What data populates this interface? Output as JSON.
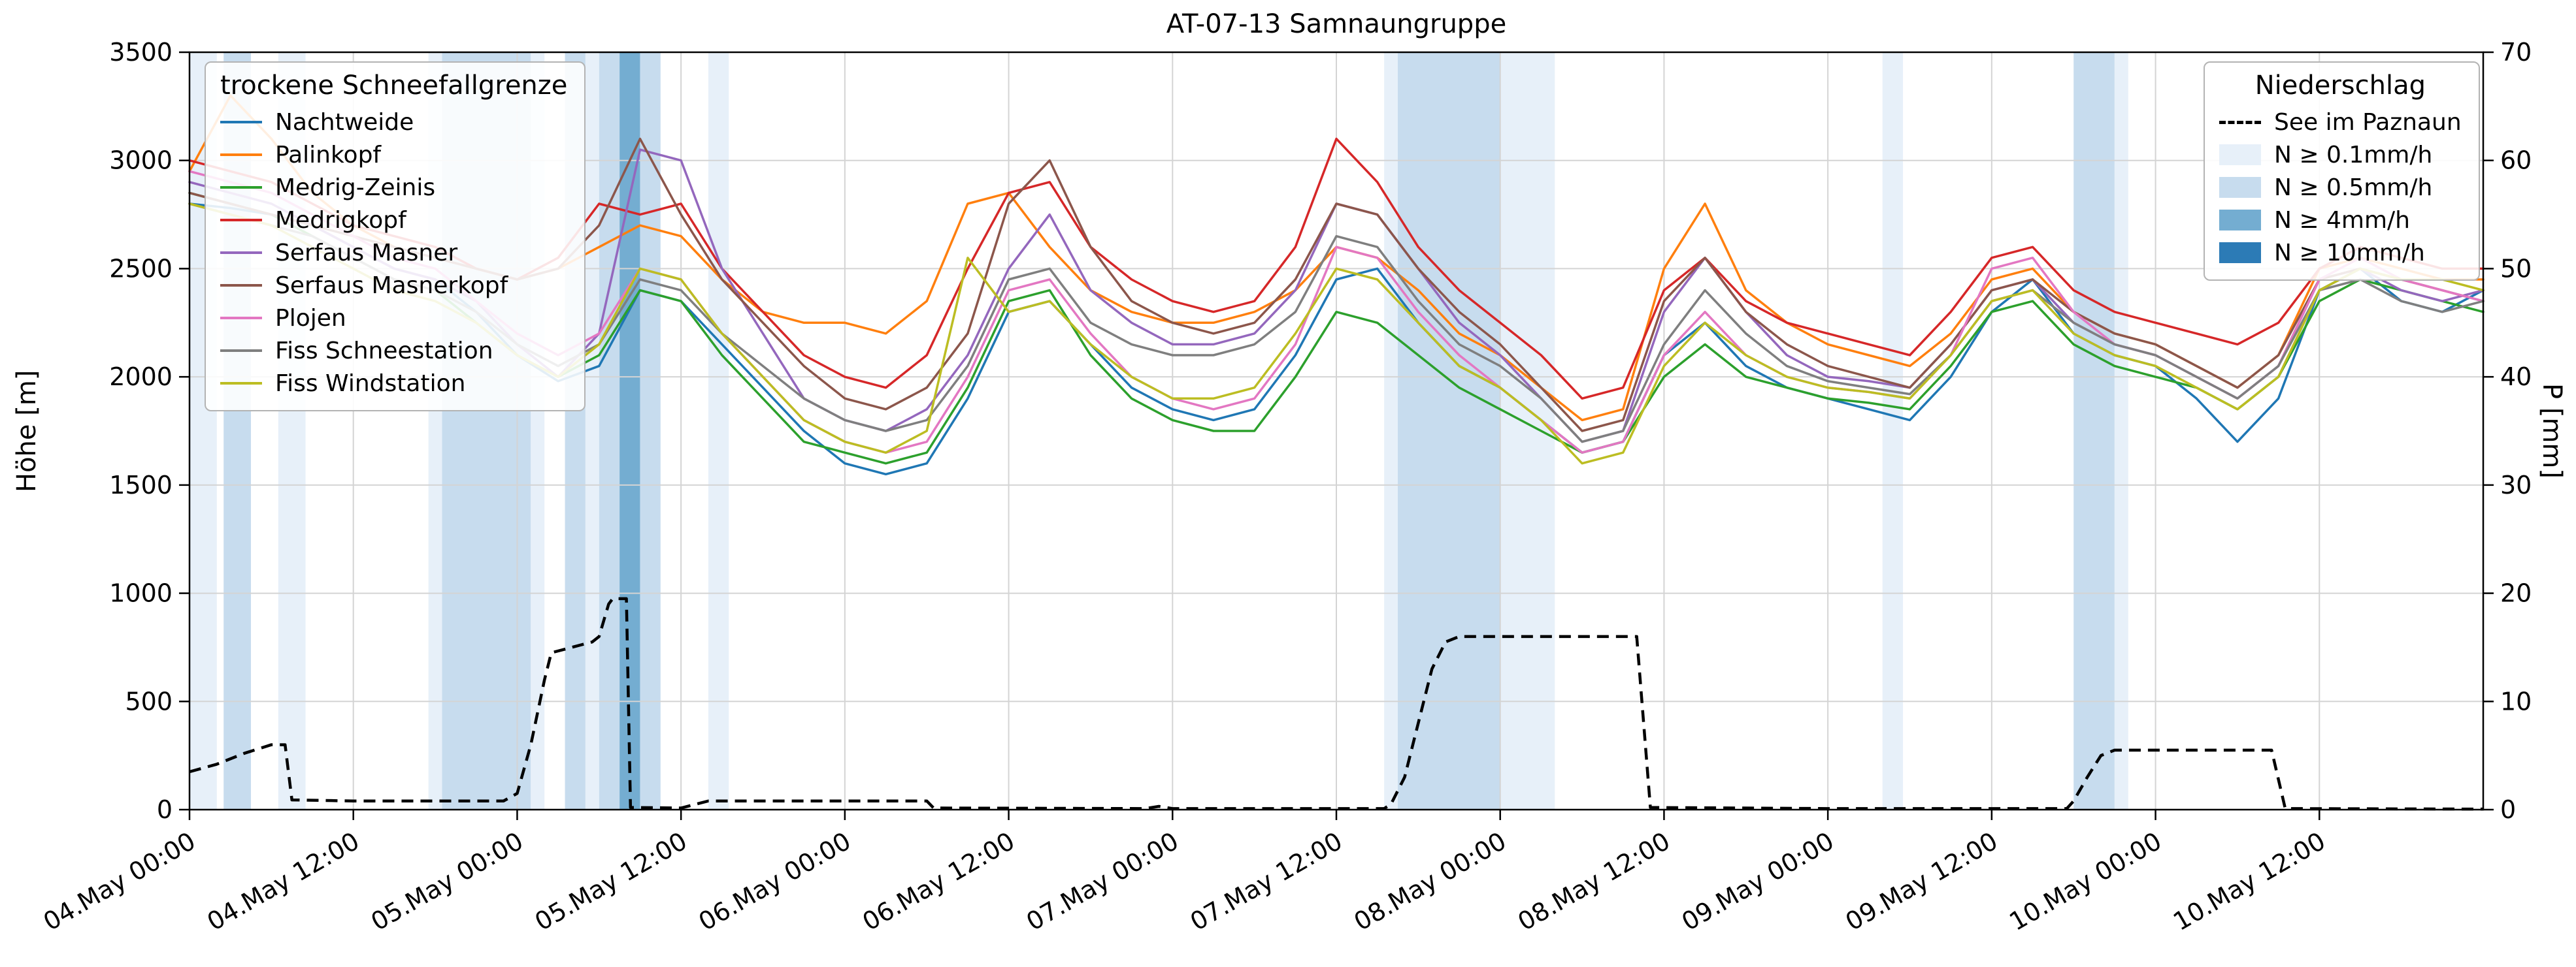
{
  "chart_data": {
    "type": "line",
    "title": "AT-07-13 Samnaungruppe",
    "ylabel_left": "Höhe [m]",
    "ylabel_right": "P [mm]",
    "ylim_left": [
      0,
      3500
    ],
    "ylim_right": [
      0,
      70
    ],
    "grid": true,
    "x_range_hours": [
      0,
      168
    ],
    "x_start_label": "04.May 00:00",
    "x_tick_hours": [
      0,
      12,
      24,
      36,
      48,
      60,
      72,
      84,
      96,
      108,
      120,
      132,
      144,
      156
    ],
    "x_tick_labels": [
      "04.May 00:00",
      "04.May 12:00",
      "05.May 00:00",
      "05.May 12:00",
      "06.May 00:00",
      "06.May 12:00",
      "07.May 00:00",
      "07.May 12:00",
      "08.May 00:00",
      "08.May 12:00",
      "09.May 00:00",
      "09.May 12:00",
      "10.May 00:00",
      "10.May 12:00"
    ],
    "y_left_ticks": [
      0,
      500,
      1000,
      1500,
      2000,
      2500,
      3000,
      3500
    ],
    "y_right_ticks": [
      0,
      10,
      20,
      30,
      40,
      50,
      60,
      70
    ],
    "x_hours": [
      0,
      3,
      6,
      9,
      12,
      15,
      18,
      21,
      24,
      27,
      30,
      33,
      36,
      39,
      42,
      45,
      48,
      51,
      54,
      57,
      60,
      63,
      66,
      69,
      72,
      75,
      78,
      81,
      84,
      87,
      90,
      93,
      96,
      99,
      102,
      105,
      108,
      111,
      114,
      117,
      120,
      123,
      126,
      129,
      132,
      135,
      138,
      141,
      144,
      147,
      150,
      153,
      156,
      159,
      162,
      165,
      168
    ],
    "series": [
      {
        "name": "Nachtweide",
        "color": "#1f77b4",
        "values": [
          2800,
          2780,
          2750,
          2700,
          2600,
          2500,
          2450,
          2300,
          2100,
          1980,
          2050,
          2400,
          2350,
          2150,
          1950,
          1750,
          1600,
          1550,
          1600,
          1900,
          2300,
          2350,
          2150,
          1950,
          1850,
          1800,
          1850,
          2100,
          2450,
          2500,
          2250,
          2050,
          1950,
          1800,
          1650,
          1700,
          2100,
          2250,
          2050,
          1950,
          1900,
          1850,
          1800,
          2000,
          2300,
          2450,
          2200,
          2100,
          2050,
          1900,
          1700,
          1900,
          2400,
          2500,
          2350,
          2300,
          2400
        ]
      },
      {
        "name": "Palinkopf",
        "color": "#ff7f0e",
        "values": [
          2950,
          3300,
          3100,
          2850,
          2700,
          2600,
          2550,
          2500,
          2450,
          2500,
          2600,
          2700,
          2650,
          2450,
          2300,
          2250,
          2250,
          2200,
          2350,
          2800,
          2850,
          2600,
          2400,
          2300,
          2250,
          2250,
          2300,
          2400,
          2600,
          2550,
          2400,
          2200,
          2100,
          1950,
          1800,
          1850,
          2500,
          2800,
          2400,
          2250,
          2150,
          2100,
          2050,
          2200,
          2450,
          2500,
          2300,
          2200,
          2150,
          2050,
          1950,
          2100,
          2500,
          2550,
          2500,
          2450,
          2450
        ]
      },
      {
        "name": "Medrig-Zeinis",
        "color": "#2ca02c",
        "values": [
          2850,
          2800,
          2750,
          2650,
          2550,
          2450,
          2400,
          2250,
          2100,
          2000,
          2100,
          2400,
          2350,
          2100,
          1900,
          1700,
          1650,
          1600,
          1650,
          1950,
          2350,
          2400,
          2100,
          1900,
          1800,
          1750,
          1750,
          2000,
          2300,
          2250,
          2100,
          1950,
          1850,
          1750,
          1650,
          1700,
          2000,
          2150,
          2000,
          1950,
          1900,
          1880,
          1850,
          2050,
          2300,
          2350,
          2150,
          2050,
          2000,
          1950,
          1850,
          2000,
          2350,
          2450,
          2400,
          2350,
          2300
        ]
      },
      {
        "name": "Medrigkopf",
        "color": "#d62728",
        "values": [
          3000,
          2950,
          2900,
          2800,
          2700,
          2650,
          2600,
          2500,
          2450,
          2550,
          2800,
          2750,
          2800,
          2500,
          2300,
          2100,
          2000,
          1950,
          2100,
          2500,
          2850,
          2900,
          2600,
          2450,
          2350,
          2300,
          2350,
          2600,
          3100,
          2900,
          2600,
          2400,
          2250,
          2100,
          1900,
          1950,
          2400,
          2550,
          2350,
          2250,
          2200,
          2150,
          2100,
          2300,
          2550,
          2600,
          2400,
          2300,
          2250,
          2200,
          2150,
          2250,
          2500,
          2600,
          2550,
          2500,
          2500
        ]
      },
      {
        "name": "Serfaus Masner",
        "color": "#9467bd",
        "values": [
          2900,
          2850,
          2800,
          2700,
          2600,
          2500,
          2450,
          2350,
          2150,
          2000,
          2200,
          3050,
          3000,
          2500,
          2200,
          1900,
          1800,
          1750,
          1850,
          2100,
          2500,
          2750,
          2400,
          2250,
          2150,
          2150,
          2200,
          2400,
          2800,
          2750,
          2500,
          2250,
          2100,
          1900,
          1700,
          1750,
          2300,
          2550,
          2300,
          2100,
          2000,
          1980,
          1950,
          2150,
          2400,
          2450,
          2250,
          2150,
          2100,
          2000,
          1900,
          2050,
          2450,
          2500,
          2400,
          2350,
          2400
        ]
      },
      {
        "name": "Serfaus Masnerkopf",
        "color": "#8c564b",
        "values": [
          2850,
          2800,
          2750,
          2700,
          2650,
          2600,
          2550,
          2500,
          2450,
          2500,
          2700,
          3100,
          2750,
          2450,
          2250,
          2050,
          1900,
          1850,
          1950,
          2200,
          2800,
          3000,
          2600,
          2350,
          2250,
          2200,
          2250,
          2450,
          2800,
          2750,
          2500,
          2300,
          2150,
          1950,
          1750,
          1800,
          2350,
          2550,
          2300,
          2150,
          2050,
          2000,
          1950,
          2150,
          2400,
          2450,
          2300,
          2200,
          2150,
          2050,
          1950,
          2100,
          2450,
          2500,
          2450,
          2400,
          2350
        ]
      },
      {
        "name": "Plojen",
        "color": "#e377c2",
        "values": [
          2950,
          2900,
          2850,
          2750,
          2650,
          2550,
          2500,
          2350,
          2200,
          2100,
          2200,
          2500,
          2450,
          2200,
          2000,
          1800,
          1700,
          1650,
          1700,
          2000,
          2400,
          2450,
          2200,
          2000,
          1900,
          1850,
          1900,
          2150,
          2600,
          2550,
          2300,
          2100,
          1950,
          1800,
          1650,
          1700,
          2100,
          2300,
          2100,
          2000,
          1950,
          1930,
          1900,
          2100,
          2500,
          2550,
          2300,
          2150,
          2100,
          2000,
          1900,
          2050,
          2450,
          2550,
          2450,
          2400,
          2350
        ]
      },
      {
        "name": "Fiss Schneestation",
        "color": "#7f7f7f",
        "values": [
          2800,
          2750,
          2700,
          2650,
          2550,
          2450,
          2400,
          2300,
          2150,
          2050,
          2150,
          2450,
          2400,
          2200,
          2050,
          1900,
          1800,
          1750,
          1800,
          2050,
          2450,
          2500,
          2250,
          2150,
          2100,
          2100,
          2150,
          2300,
          2650,
          2600,
          2350,
          2150,
          2050,
          1900,
          1700,
          1750,
          2150,
          2400,
          2200,
          2050,
          1980,
          1950,
          1920,
          2100,
          2350,
          2400,
          2250,
          2150,
          2100,
          2000,
          1900,
          2050,
          2400,
          2450,
          2350,
          2300,
          2350
        ]
      },
      {
        "name": "Fiss Windstation",
        "color": "#bcbd22",
        "values": [
          2800,
          2750,
          2700,
          2600,
          2500,
          2400,
          2350,
          2250,
          2100,
          2000,
          2150,
          2500,
          2450,
          2200,
          2000,
          1800,
          1700,
          1650,
          1750,
          2550,
          2300,
          2350,
          2150,
          2000,
          1900,
          1900,
          1950,
          2200,
          2500,
          2450,
          2250,
          2050,
          1950,
          1800,
          1600,
          1650,
          2050,
          2250,
          2100,
          2000,
          1950,
          1930,
          1900,
          2100,
          2350,
          2400,
          2200,
          2100,
          2050,
          1950,
          1850,
          2000,
          2400,
          2500,
          2450,
          2450,
          2400
        ]
      }
    ],
    "precip_line": {
      "name": "See im Paznaun",
      "color": "#000000",
      "style": "dashed",
      "unit": "mm",
      "points": [
        [
          0,
          3.5
        ],
        [
          2,
          4.2
        ],
        [
          4,
          5.2
        ],
        [
          6,
          6
        ],
        [
          7,
          6
        ],
        [
          7.5,
          0.9
        ],
        [
          12,
          0.8
        ],
        [
          23,
          0.8
        ],
        [
          24,
          1.5
        ],
        [
          25,
          6
        ],
        [
          26,
          12
        ],
        [
          26.5,
          14.5
        ],
        [
          28,
          15
        ],
        [
          29.5,
          15.5
        ],
        [
          30,
          16
        ],
        [
          30.7,
          19
        ],
        [
          31,
          19.5
        ],
        [
          32,
          19.5
        ],
        [
          32.3,
          0.2
        ],
        [
          36,
          0.15
        ],
        [
          38,
          0.8
        ],
        [
          54,
          0.8
        ],
        [
          54.5,
          0.15
        ],
        [
          70,
          0.1
        ],
        [
          71,
          0.3
        ],
        [
          72,
          0.1
        ],
        [
          87.5,
          0.1
        ],
        [
          88,
          0.5
        ],
        [
          89,
          3
        ],
        [
          90,
          8
        ],
        [
          91,
          13
        ],
        [
          92,
          15.5
        ],
        [
          93,
          16
        ],
        [
          106,
          16
        ],
        [
          107,
          0.2
        ],
        [
          120,
          0.1
        ],
        [
          137.5,
          0.1
        ],
        [
          138,
          0.8
        ],
        [
          139,
          3
        ],
        [
          140,
          5
        ],
        [
          141,
          5.5
        ],
        [
          152.5,
          5.5
        ],
        [
          153.5,
          0.1
        ],
        [
          168,
          0.05
        ]
      ]
    },
    "band_colors": {
      "0.1": "#e7f0f9",
      "0.5": "#c7dcee",
      "4": "#74add1",
      "10": "#2c7bb6"
    },
    "precip_bands": [
      {
        "start_h": 0,
        "end_h": 2,
        "level": "0.1"
      },
      {
        "start_h": 2.5,
        "end_h": 4.5,
        "level": "0.5"
      },
      {
        "start_h": 6.5,
        "end_h": 8.5,
        "level": "0.1"
      },
      {
        "start_h": 17.5,
        "end_h": 18.5,
        "level": "0.1"
      },
      {
        "start_h": 18.5,
        "end_h": 25,
        "level": "0.5"
      },
      {
        "start_h": 25,
        "end_h": 26,
        "level": "0.1"
      },
      {
        "start_h": 27.5,
        "end_h": 29,
        "level": "0.5"
      },
      {
        "start_h": 29,
        "end_h": 30,
        "level": "0.1"
      },
      {
        "start_h": 30,
        "end_h": 31.5,
        "level": "0.5"
      },
      {
        "start_h": 31.5,
        "end_h": 33,
        "level": "4"
      },
      {
        "start_h": 33,
        "end_h": 34.5,
        "level": "0.5"
      },
      {
        "start_h": 38,
        "end_h": 39.5,
        "level": "0.1"
      },
      {
        "start_h": 87.5,
        "end_h": 88.5,
        "level": "0.1"
      },
      {
        "start_h": 88.5,
        "end_h": 96,
        "level": "0.5"
      },
      {
        "start_h": 96,
        "end_h": 100,
        "level": "0.1"
      },
      {
        "start_h": 124,
        "end_h": 125.5,
        "level": "0.1"
      },
      {
        "start_h": 138,
        "end_h": 141,
        "level": "0.5"
      },
      {
        "start_h": 141,
        "end_h": 142,
        "level": "0.1"
      }
    ]
  },
  "legend_stations": {
    "title": "trockene Schneefallgrenze"
  },
  "legend_precip": {
    "title": "Niederschlag",
    "band_items": [
      {
        "level": "0.1",
        "label": "N ≥ 0.1mm/h"
      },
      {
        "level": "0.5",
        "label": "N ≥ 0.5mm/h"
      },
      {
        "level": "4",
        "label": "N ≥ 4mm/h"
      },
      {
        "level": "10",
        "label": "N ≥ 10mm/h"
      }
    ]
  }
}
